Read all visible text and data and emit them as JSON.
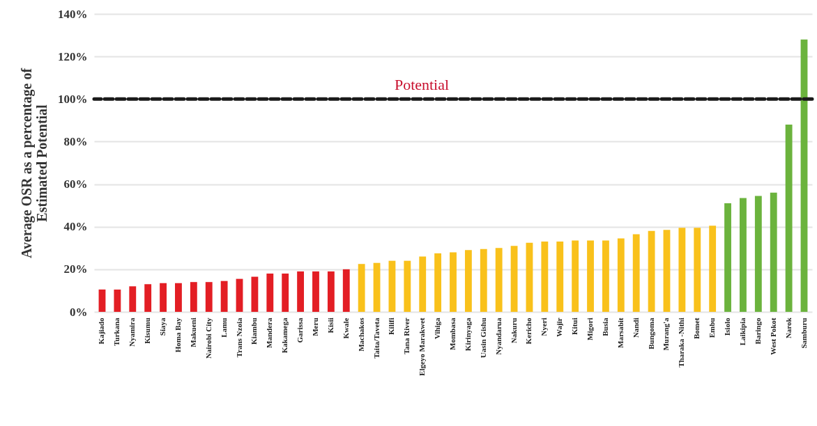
{
  "chart_data": {
    "type": "bar",
    "ylabel": "Average OSR as a percentage of Estimated Potential",
    "categories": [
      "Kajiado",
      "Turkana",
      "Nyamira",
      "Kisumu",
      "Siaya",
      "Homa Bay",
      "Makueni",
      "Nairobi City",
      "Lamu",
      "Trans Nzoia",
      "Kiambu",
      "Mandera",
      "Kakamega",
      "Garissa",
      "Meru",
      "Kisii",
      "Kwale",
      "Machakos",
      "Taita/Taveta",
      "Kilifi",
      "Tana River",
      "Elgeyo Marakwet",
      "Vihiga",
      "Mombasa",
      "Kirinyaga",
      "Uasin Gishu",
      "Nyandarua",
      "Nakuru",
      "Kericho",
      "Nyeri",
      "Wajir",
      "Kitui",
      "Migori",
      "Busia",
      "Marsabit",
      "Nandi",
      "Bungoma",
      "Murang'a",
      "Tharaka -Nithi",
      "Bomet",
      "Embu",
      "Isiolo",
      "Laikipia",
      "Baringo",
      "West Pokot",
      "Narok",
      "Samburu"
    ],
    "values": [
      10.5,
      10.5,
      12,
      13,
      13.5,
      13.5,
      14,
      14,
      14.5,
      15.5,
      16.5,
      18,
      18,
      19,
      19,
      19,
      20,
      22.5,
      23,
      24,
      24,
      26,
      27.5,
      28,
      29,
      29.5,
      30,
      31,
      32.5,
      33,
      33,
      33.5,
      33.5,
      33.5,
      34.5,
      36.5,
      38,
      38.5,
      39.5,
      39.5,
      40.5,
      51,
      53.5,
      54.5,
      56,
      88,
      128
    ],
    "colors": [
      "#e31e24",
      "#e31e24",
      "#e31e24",
      "#e31e24",
      "#e31e24",
      "#e31e24",
      "#e31e24",
      "#e31e24",
      "#e31e24",
      "#e31e24",
      "#e31e24",
      "#e31e24",
      "#e31e24",
      "#e31e24",
      "#e31e24",
      "#e31e24",
      "#e31e24",
      "#f9c11b",
      "#f9c11b",
      "#f9c11b",
      "#f9c11b",
      "#f9c11b",
      "#f9c11b",
      "#f9c11b",
      "#f9c11b",
      "#f9c11b",
      "#f9c11b",
      "#f9c11b",
      "#f9c11b",
      "#f9c11b",
      "#f9c11b",
      "#f9c11b",
      "#f9c11b",
      "#f9c11b",
      "#f9c11b",
      "#f9c11b",
      "#f9c11b",
      "#f9c11b",
      "#f9c11b",
      "#f9c11b",
      "#f9c11b",
      "#6bb33d",
      "#6bb33d",
      "#6bb33d",
      "#6bb33d",
      "#6bb33d",
      "#6bb33d"
    ],
    "ylim": [
      0,
      140
    ],
    "yticks": [
      {
        "value": 0,
        "label": "0%"
      },
      {
        "value": 20,
        "label": "20%"
      },
      {
        "value": 40,
        "label": "40%"
      },
      {
        "value": 60,
        "label": "60%"
      },
      {
        "value": 80,
        "label": "80%"
      },
      {
        "value": 100,
        "label": "100%"
      },
      {
        "value": 120,
        "label": "120%"
      },
      {
        "value": 140,
        "label": "140%"
      }
    ],
    "grid": "y",
    "ref_lines": [
      {
        "axis": "y",
        "value": 100,
        "label": "Potential",
        "color": "#1a1a1a",
        "line_style": "dashed"
      }
    ]
  }
}
